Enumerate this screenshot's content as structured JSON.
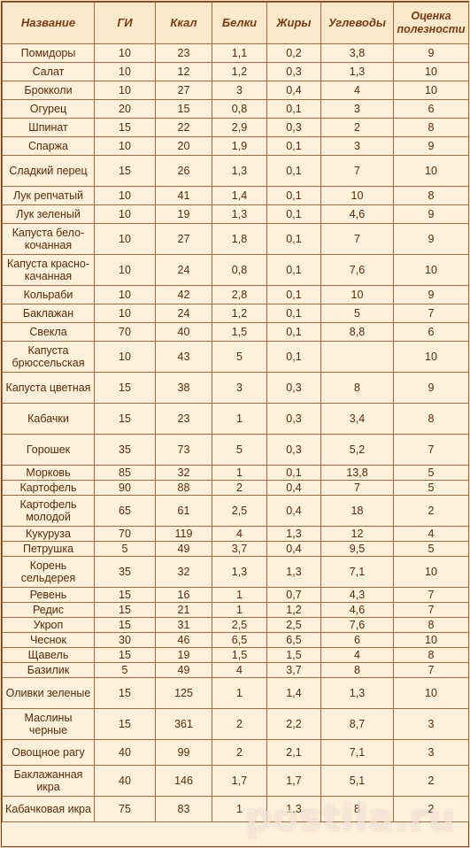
{
  "headers": [
    "Название",
    "ГИ",
    "Ккал",
    "Белки",
    "Жиры",
    "Углеводы",
    "Оценка полезности"
  ],
  "rows": [
    [
      "Помидоры",
      "10",
      "23",
      "1,1",
      "0,2",
      "3,8",
      "9"
    ],
    [
      "Салат",
      "10",
      "12",
      "1,2",
      "0,3",
      "1,3",
      "10"
    ],
    [
      "Брокколи",
      "10",
      "27",
      "3",
      "0,4",
      "4",
      "10"
    ],
    [
      "Огурец",
      "20",
      "15",
      "0,8",
      "0,1",
      "3",
      "6"
    ],
    [
      "Шпинат",
      "15",
      "22",
      "2,9",
      "0,3",
      "2",
      "8"
    ],
    [
      "Спаржа",
      "10",
      "20",
      "1,9",
      "0,1",
      "3",
      "9"
    ],
    [
      "Сладкий перец",
      "15",
      "26",
      "1,3",
      "0,1",
      "7",
      "10"
    ],
    [
      "Лук репчатый",
      "10",
      "41",
      "1,4",
      "0,1",
      "10",
      "8"
    ],
    [
      "Лук зеленый",
      "10",
      "19",
      "1,3",
      "0,1",
      "4,6",
      "9"
    ],
    [
      "Капуста бело-кочанная",
      "10",
      "27",
      "1,8",
      "0,1",
      "7",
      "9"
    ],
    [
      "Капуста красно-качанная",
      "10",
      "24",
      "0,8",
      "0,1",
      "7,6",
      "10"
    ],
    [
      "Кольраби",
      "10",
      "42",
      "2,8",
      "0,1",
      "10",
      "9"
    ],
    [
      "Баклажан",
      "10",
      "24",
      "1,2",
      "0,1",
      "5",
      "7"
    ],
    [
      "Свекла",
      "70",
      "40",
      "1,5",
      "0,1",
      "8,8",
      "6"
    ],
    [
      "Капуста брюссельская",
      "10",
      "43",
      "5",
      "0,1",
      "",
      "10"
    ],
    [
      "Капуста цветная",
      "15",
      "38",
      "3",
      "0,3",
      "8",
      "9"
    ],
    [
      "Кабачки",
      "15",
      "23",
      "1",
      "0,3",
      "3,4",
      "8"
    ],
    [
      "Горошек",
      "35",
      "73",
      "5",
      "0,3",
      "5,2",
      "7"
    ],
    [
      "Морковь",
      "85",
      "32",
      "1",
      "0,1",
      "13,8",
      "5"
    ],
    [
      "Картофель",
      "90",
      "88",
      "2",
      "0,4",
      "7",
      "5"
    ],
    [
      "Картофель молодой",
      "65",
      "61",
      "2,5",
      "0,4",
      "18",
      "2"
    ],
    [
      "Кукуруза",
      "70",
      "119",
      "4",
      "1,3",
      "12",
      "4"
    ],
    [
      "Петрушка",
      "5",
      "49",
      "3,7",
      "0,4",
      "9,5",
      "5"
    ],
    [
      "Корень сельдерея",
      "35",
      "32",
      "1,3",
      "1,3",
      "7,1",
      "10"
    ],
    [
      "Ревень",
      "15",
      "16",
      "1",
      "0,7",
      "4,3",
      "7"
    ],
    [
      "Редис",
      "15",
      "21",
      "1",
      "1,2",
      "4,6",
      "7"
    ],
    [
      "Укроп",
      "15",
      "31",
      "2,5",
      "2,5",
      "7,6",
      "8"
    ],
    [
      "Чеснок",
      "30",
      "46",
      "6,5",
      "6,5",
      "6",
      "10"
    ],
    [
      "Щавель",
      "15",
      "19",
      "1,5",
      "1,5",
      "4",
      "8"
    ],
    [
      "Базилик",
      "5",
      "49",
      "4",
      "3,7",
      "8",
      "7"
    ],
    [
      "Оливки зеленые",
      "15",
      "125",
      "1",
      "1,4",
      "1,3",
      "10"
    ],
    [
      "Маслины черные",
      "15",
      "361",
      "2",
      "2,2",
      "8,7",
      "3"
    ],
    [
      "Овощное рагу",
      "40",
      "99",
      "2",
      "2,1",
      "7,1",
      "3"
    ],
    [
      "Баклажанная икра",
      "40",
      "146",
      "1,7",
      "1,7",
      "5,1",
      "2"
    ],
    [
      "Кабачковая икра",
      "75",
      "83",
      "1",
      "1,3",
      "8",
      "2"
    ]
  ],
  "row_heights": [
    "r",
    "r",
    "r",
    "r",
    "r",
    "r",
    "xtall",
    "r",
    "r",
    "xtall",
    "xtall",
    "r",
    "r",
    "r",
    "xtall",
    "xtall",
    "xtall",
    "xtall",
    "small",
    "small",
    "xtall",
    "small",
    "small",
    "xtall",
    "small",
    "small",
    "small",
    "small",
    "small",
    "small",
    "xtall",
    "xtall",
    "tall",
    "xtall",
    "tall"
  ],
  "watermark": "postila.ru"
}
